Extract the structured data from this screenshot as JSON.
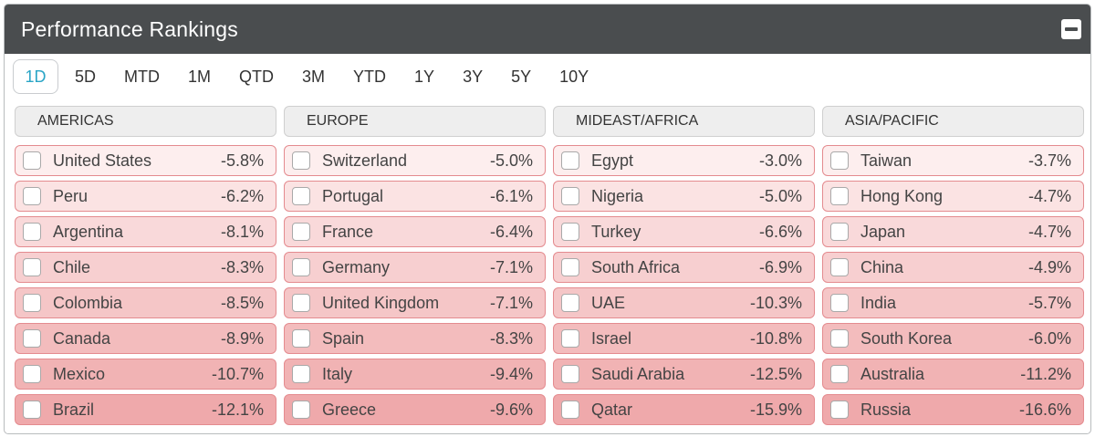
{
  "header": {
    "title": "Performance Rankings"
  },
  "tabs": [
    "1D",
    "5D",
    "MTD",
    "1M",
    "QTD",
    "3M",
    "YTD",
    "1Y",
    "3Y",
    "5Y",
    "10Y"
  ],
  "active_tab": "1D",
  "row_shades": [
    "#fdeeee",
    "#fbe3e3",
    "#f9d9da",
    "#f7cfd0",
    "#f5c6c7",
    "#f3bcbd",
    "#f1b3b4",
    "#efa9ab"
  ],
  "regions": [
    {
      "name": "AMERICAS",
      "rows": [
        {
          "country": "United States",
          "value": "-5.8%"
        },
        {
          "country": "Peru",
          "value": "-6.2%"
        },
        {
          "country": "Argentina",
          "value": "-8.1%"
        },
        {
          "country": "Chile",
          "value": "-8.3%"
        },
        {
          "country": "Colombia",
          "value": "-8.5%"
        },
        {
          "country": "Canada",
          "value": "-8.9%"
        },
        {
          "country": "Mexico",
          "value": "-10.7%"
        },
        {
          "country": "Brazil",
          "value": "-12.1%"
        }
      ]
    },
    {
      "name": "EUROPE",
      "rows": [
        {
          "country": "Switzerland",
          "value": "-5.0%"
        },
        {
          "country": "Portugal",
          "value": "-6.1%"
        },
        {
          "country": "France",
          "value": "-6.4%"
        },
        {
          "country": "Germany",
          "value": "-7.1%"
        },
        {
          "country": "United Kingdom",
          "value": "-7.1%"
        },
        {
          "country": "Spain",
          "value": "-8.3%"
        },
        {
          "country": "Italy",
          "value": "-9.4%"
        },
        {
          "country": "Greece",
          "value": "-9.6%"
        }
      ]
    },
    {
      "name": "MIDEAST/AFRICA",
      "rows": [
        {
          "country": "Egypt",
          "value": "-3.0%"
        },
        {
          "country": "Nigeria",
          "value": "-5.0%"
        },
        {
          "country": "Turkey",
          "value": "-6.6%"
        },
        {
          "country": "South Africa",
          "value": "-6.9%"
        },
        {
          "country": "UAE",
          "value": "-10.3%"
        },
        {
          "country": "Israel",
          "value": "-10.8%"
        },
        {
          "country": "Saudi Arabia",
          "value": "-12.5%"
        },
        {
          "country": "Qatar",
          "value": "-15.9%"
        }
      ]
    },
    {
      "name": "ASIA/PACIFIC",
      "rows": [
        {
          "country": "Taiwan",
          "value": "-3.7%"
        },
        {
          "country": "Hong Kong",
          "value": "-4.7%"
        },
        {
          "country": "Japan",
          "value": "-4.7%"
        },
        {
          "country": "China",
          "value": "-4.9%"
        },
        {
          "country": "India",
          "value": "-5.7%"
        },
        {
          "country": "South Korea",
          "value": "-6.0%"
        },
        {
          "country": "Australia",
          "value": "-11.2%"
        },
        {
          "country": "Russia",
          "value": "-16.6%"
        }
      ]
    }
  ]
}
